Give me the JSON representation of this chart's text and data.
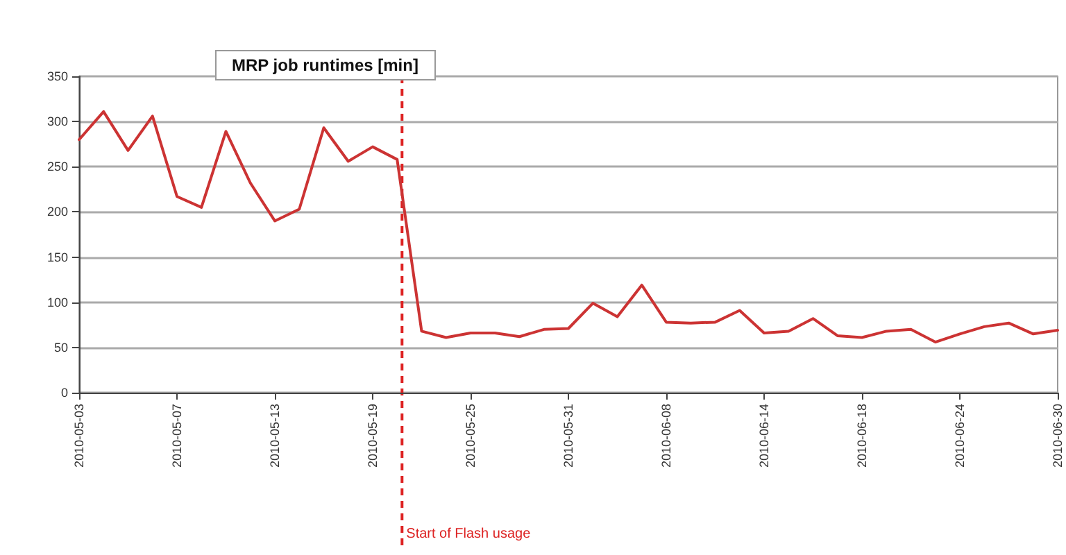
{
  "chart_data": {
    "type": "line",
    "title": "MRP job runtimes [min]",
    "categories": [
      "2010-05-03",
      null,
      null,
      null,
      "2010-05-07",
      null,
      null,
      null,
      "2010-05-13",
      null,
      null,
      null,
      "2010-05-19",
      null,
      null,
      null,
      "2010-05-25",
      null,
      null,
      null,
      "2010-05-31",
      null,
      null,
      null,
      "2010-06-08",
      null,
      null,
      null,
      "2010-06-14",
      null,
      null,
      null,
      "2010-06-18",
      null,
      null,
      null,
      "2010-06-24",
      null,
      null,
      null,
      "2010-06-30"
    ],
    "series": [
      {
        "color": "#cc3333",
        "values": [
          280,
          311,
          268,
          306,
          217,
          205,
          289,
          232,
          190,
          203,
          293,
          256,
          272,
          258,
          68,
          61,
          66,
          66,
          62,
          70,
          71,
          99,
          84,
          119,
          78,
          77,
          78,
          91,
          66,
          68,
          82,
          63,
          61,
          68,
          70,
          56,
          65,
          73,
          77,
          65,
          69
        ]
      }
    ],
    "ylim": [
      0,
      350
    ],
    "yticks": [
      0,
      50,
      100,
      150,
      200,
      250,
      300,
      350
    ],
    "grid": "y",
    "marker": "none",
    "line_style": "solid",
    "annotations": [
      "Start of Flash usage"
    ]
  }
}
